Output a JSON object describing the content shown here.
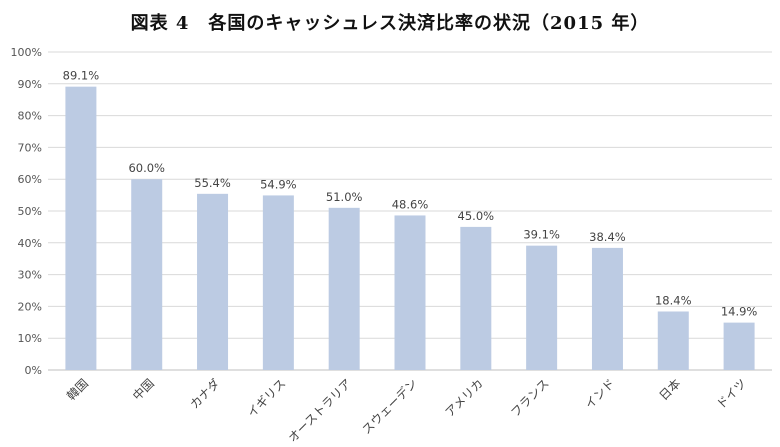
{
  "colors": {
    "bar": "#bccbe3",
    "grid": "#d9d9d9",
    "axis": "#bfbfbf",
    "text": "#444444"
  },
  "chart_data": {
    "type": "bar",
    "title": "図表 4　各国のキャッシュレス決済比率の状況（2015 年）",
    "xlabel": "",
    "ylabel": "",
    "categories": [
      "韓国",
      "中国",
      "カナダ",
      "イギリス",
      "オーストラリア",
      "スウェーデン",
      "アメリカ",
      "フランス",
      "インド",
      "日本",
      "ドイツ"
    ],
    "values": [
      89.1,
      60.0,
      55.4,
      54.9,
      51.0,
      48.6,
      45.0,
      39.1,
      38.4,
      18.4,
      14.9
    ],
    "data_labels": [
      "89.1%",
      "60.0%",
      "55.4%",
      "54.9%",
      "51.0%",
      "48.6%",
      "45.0%",
      "39.1%",
      "38.4%",
      "18.4%",
      "14.9%"
    ],
    "ylim": [
      0,
      100
    ],
    "ytick_labels": [
      "0%",
      "10%",
      "20%",
      "30%",
      "40%",
      "50%",
      "60%",
      "70%",
      "80%",
      "90%",
      "100%"
    ],
    "grid": true,
    "legend": "none"
  }
}
